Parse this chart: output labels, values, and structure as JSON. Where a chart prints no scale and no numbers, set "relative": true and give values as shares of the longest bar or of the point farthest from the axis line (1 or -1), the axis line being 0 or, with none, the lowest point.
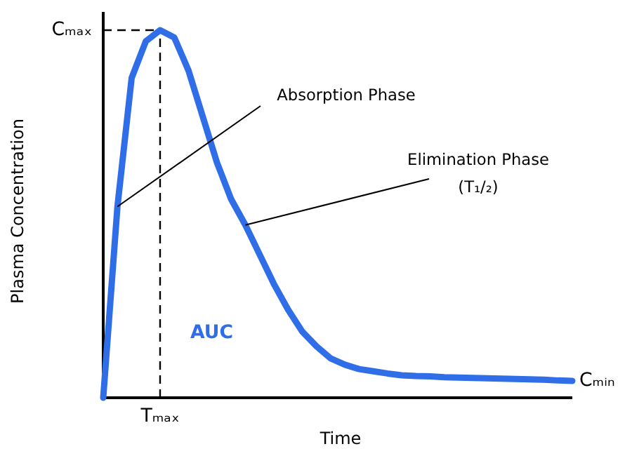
{
  "chart_data": {
    "type": "line",
    "relative": true,
    "xlabel": "Time",
    "ylabel": "Plasma Concentration",
    "categories": [
      null,
      null,
      null,
      null,
      null,
      null,
      null,
      null,
      null,
      null,
      null,
      null,
      null,
      null,
      null,
      null,
      null,
      null,
      null,
      null,
      null,
      null,
      null,
      null,
      null,
      null,
      null,
      null,
      null,
      null,
      null,
      null,
      null,
      null
    ],
    "series": [
      {
        "color": "#2f6ee6",
        "values": [
          0,
          0.52,
          0.87,
          0.97,
          1.0,
          0.98,
          0.89,
          0.765,
          0.64,
          0.54,
          0.47,
          0.39,
          0.31,
          0.24,
          0.18,
          0.14,
          0.107,
          0.09,
          0.078,
          0.072,
          0.066,
          0.061,
          0.059,
          0.058,
          0.056,
          0.055,
          0.054,
          0.053,
          0.052,
          0.051,
          0.05,
          0.049,
          0.047,
          0.046
        ]
      }
    ],
    "ref_lines": [
      {
        "axis": "y",
        "value": 1,
        "label": "Cₘₐₓ",
        "line_style": "dashed",
        "color": "#000000"
      }
    ],
    "annotations": [
      "Absorption Phase",
      "Elimination Phase\n(T₁/₂)",
      "AUC",
      "Cₘᵢₙ",
      "Tₘₐₓ"
    ],
    "marker": "none",
    "line_style": "solid"
  }
}
